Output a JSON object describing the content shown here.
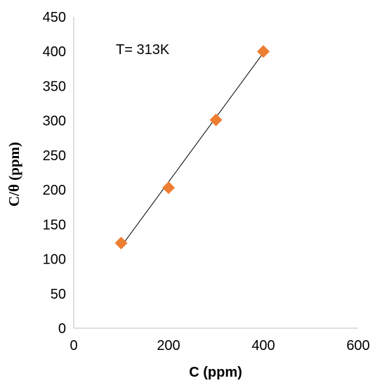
{
  "chart_data": {
    "type": "scatter",
    "xlabel": "C (ppm)",
    "ylabel": "C/θ (ppm)",
    "annotation": "T= 313K",
    "xlim": [
      0,
      600
    ],
    "ylim": [
      0,
      450
    ],
    "x_ticks": [
      0,
      200,
      400,
      600
    ],
    "y_ticks": [
      0,
      50,
      100,
      150,
      200,
      250,
      300,
      350,
      400,
      450
    ],
    "grid": false,
    "series": [
      {
        "x": [
          100,
          200,
          300,
          400
        ],
        "y": [
          123,
          203,
          301,
          400
        ],
        "marker": "diamond",
        "color": "#ED7D31"
      }
    ],
    "trendline": {
      "type": "linear",
      "x": [
        100,
        400
      ],
      "y": [
        118,
        398
      ],
      "color": "#000000"
    }
  }
}
